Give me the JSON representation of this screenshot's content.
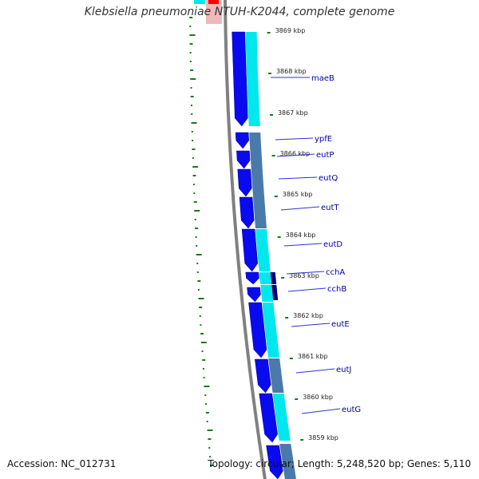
{
  "title": "Klebsiella pneumoniae NTUH-K2044, complete genome",
  "footer": {
    "accession_label": "Accession: NC_012731",
    "stats_label": "Topology: circular; Length: 5,248,520 bp; Genes: 5,110"
  },
  "colors": {
    "forward_cds": "#0a0af0",
    "reverse_cds_light": "#00e8ee",
    "reverse_cds_steel": "#4a7aaa",
    "dark_cds": "#00007a",
    "backbone": "#808080",
    "gc_skew_marks": "#1a7a1a",
    "gene_label": "#0000aa",
    "top_marker_red": "#ff0000",
    "top_marker_pink": "#f0b8b8"
  },
  "ruler": [
    {
      "label": "3869 kbp"
    },
    {
      "label": "3868 kbp"
    },
    {
      "label": "3867 kbp"
    },
    {
      "label": "3866 kbp"
    },
    {
      "label": "3865 kbp"
    },
    {
      "label": "3864 kbp"
    },
    {
      "label": "3863 kbp"
    },
    {
      "label": "3862 kbp"
    },
    {
      "label": "3861 kbp"
    },
    {
      "label": "3860 kbp"
    },
    {
      "label": "3859 kbp"
    }
  ],
  "genes": [
    {
      "name": "maeB"
    },
    {
      "name": "ypfE"
    },
    {
      "name": "eutP"
    },
    {
      "name": "eutQ"
    },
    {
      "name": "eutT"
    },
    {
      "name": "eutD"
    },
    {
      "name": "cchA"
    },
    {
      "name": "cchB"
    },
    {
      "name": "eutE"
    },
    {
      "name": "eutJ"
    },
    {
      "name": "eutG"
    }
  ]
}
